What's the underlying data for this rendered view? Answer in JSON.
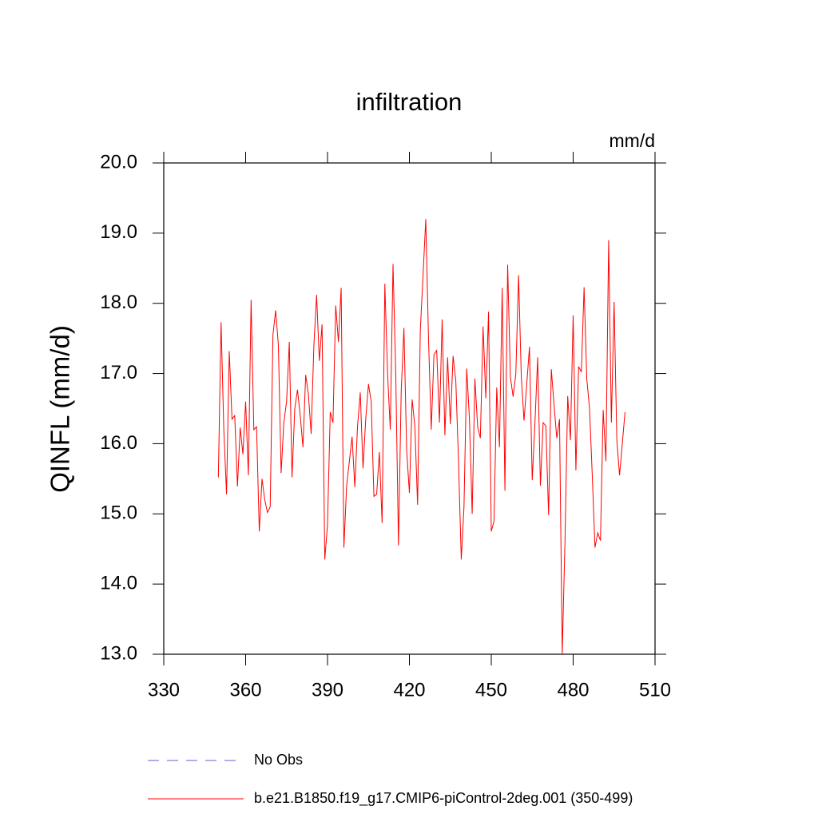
{
  "chart_data": {
    "type": "line",
    "title": "infiltration",
    "units": "mm/d",
    "y_label": "QINFL  (mm/d)",
    "x": [
      350,
      351,
      352,
      353,
      354,
      355,
      356,
      357,
      358,
      359,
      360,
      361,
      362,
      363,
      364,
      365,
      366,
      367,
      368,
      369,
      370,
      371,
      372,
      373,
      374,
      375,
      376,
      377,
      378,
      379,
      380,
      381,
      382,
      383,
      384,
      385,
      386,
      387,
      388,
      389,
      390,
      391,
      392,
      393,
      394,
      395,
      396,
      397,
      398,
      399,
      400,
      401,
      402,
      403,
      404,
      405,
      406,
      407,
      408,
      409,
      410,
      411,
      412,
      413,
      414,
      415,
      416,
      417,
      418,
      419,
      420,
      421,
      422,
      423,
      424,
      425,
      426,
      427,
      428,
      429,
      430,
      431,
      432,
      433,
      434,
      435,
      436,
      437,
      438,
      439,
      440,
      441,
      442,
      443,
      444,
      445,
      446,
      447,
      448,
      449,
      450,
      451,
      452,
      453,
      454,
      455,
      456,
      457,
      458,
      459,
      460,
      461,
      462,
      463,
      464,
      465,
      466,
      467,
      468,
      469,
      470,
      471,
      472,
      473,
      474,
      475,
      476,
      477,
      478,
      479,
      480,
      481,
      482,
      483,
      484,
      485,
      486,
      487,
      488,
      489,
      490,
      491,
      492,
      493,
      494,
      495,
      496,
      497,
      498,
      499
    ],
    "series": [
      {
        "name": "No Obs",
        "color": "#6a5acd",
        "dashed": true,
        "values": [
          null,
          null,
          null,
          null,
          null,
          null,
          null,
          null,
          null,
          null,
          null,
          null,
          null,
          null,
          null,
          null,
          null,
          null,
          null,
          null,
          null,
          null,
          null,
          null,
          null,
          null,
          null,
          null,
          null,
          null,
          null,
          null,
          null,
          null,
          null,
          null,
          null,
          null,
          null,
          null,
          null,
          null,
          null,
          null,
          null,
          null,
          null,
          null,
          null,
          null,
          null,
          null,
          null,
          null,
          null,
          null,
          null,
          null,
          null,
          null,
          null,
          null,
          null,
          null,
          null,
          null,
          null,
          null,
          null,
          null,
          null,
          null,
          null,
          null,
          null,
          null,
          null,
          null,
          null,
          null,
          null,
          null,
          null,
          null,
          null,
          null,
          null,
          null,
          null,
          null,
          null,
          null,
          null,
          null,
          null,
          null,
          null,
          null,
          null,
          null,
          null,
          null,
          null,
          null,
          null,
          null,
          null,
          null,
          null,
          null,
          null,
          null,
          null,
          null,
          null,
          null,
          null,
          null,
          null,
          null,
          null,
          null,
          null,
          null,
          null,
          null,
          null,
          null,
          null,
          null,
          null,
          null,
          null,
          null,
          null,
          null,
          null,
          null,
          null,
          null,
          null,
          null,
          null,
          null,
          null,
          null,
          null,
          null,
          null,
          null
        ]
      },
      {
        "name": "b.e21.B1850.f19_g17.CMIP6-piControl-2deg.001 (350-499)",
        "color": "#ff0000",
        "dashed": false,
        "values": [
          15.52,
          17.73,
          16.2,
          15.28,
          17.32,
          16.35,
          16.4,
          15.39,
          16.23,
          15.85,
          16.6,
          15.55,
          18.05,
          16.2,
          16.24,
          14.75,
          15.5,
          15.2,
          15.02,
          15.1,
          17.55,
          17.9,
          17.4,
          15.58,
          16.3,
          16.6,
          17.45,
          15.52,
          16.5,
          16.77,
          16.4,
          15.95,
          16.98,
          16.7,
          16.14,
          17.4,
          18.12,
          17.18,
          17.7,
          14.35,
          14.85,
          16.45,
          16.3,
          17.97,
          17.45,
          18.22,
          14.52,
          15.4,
          15.75,
          16.1,
          15.38,
          16.25,
          16.73,
          15.65,
          16.35,
          16.85,
          16.6,
          15.25,
          15.28,
          15.88,
          14.87,
          18.28,
          17.0,
          16.2,
          18.56,
          17.0,
          14.55,
          16.75,
          17.65,
          15.9,
          15.3,
          16.63,
          16.25,
          15.13,
          17.62,
          18.4,
          19.2,
          17.5,
          16.2,
          17.27,
          17.33,
          16.3,
          17.77,
          16.12,
          17.23,
          16.28,
          17.25,
          16.9,
          15.75,
          14.35,
          15.1,
          17.07,
          16.35,
          15.0,
          16.93,
          16.24,
          16.08,
          17.67,
          16.65,
          17.88,
          14.75,
          14.9,
          16.8,
          15.95,
          18.22,
          15.33,
          18.55,
          16.95,
          16.67,
          17.0,
          18.4,
          16.95,
          16.33,
          16.85,
          17.38,
          15.48,
          16.3,
          17.23,
          15.4,
          16.3,
          16.25,
          14.98,
          17.06,
          16.55,
          16.08,
          16.35,
          13.0,
          14.6,
          16.68,
          16.05,
          17.83,
          15.62,
          17.1,
          17.02,
          18.23,
          16.92,
          16.5,
          15.55,
          14.52,
          14.73,
          14.62,
          16.48,
          15.75,
          18.9,
          16.3,
          18.02,
          16.05,
          15.55,
          16.0,
          16.45
        ]
      }
    ],
    "xlim": [
      330,
      510
    ],
    "xticks": [
      330,
      360,
      390,
      420,
      450,
      480,
      510
    ],
    "ylim": [
      13,
      20
    ],
    "yticks": [
      {
        "value": 13,
        "label": "13.0"
      },
      {
        "value": 14,
        "label": "14.0"
      },
      {
        "value": 15,
        "label": "15.0"
      },
      {
        "value": 16,
        "label": "16.0"
      },
      {
        "value": 17,
        "label": "17.0"
      },
      {
        "value": 18,
        "label": "18.0"
      },
      {
        "value": 19,
        "label": "19.0"
      },
      {
        "value": 20,
        "label": "20.0"
      }
    ]
  }
}
